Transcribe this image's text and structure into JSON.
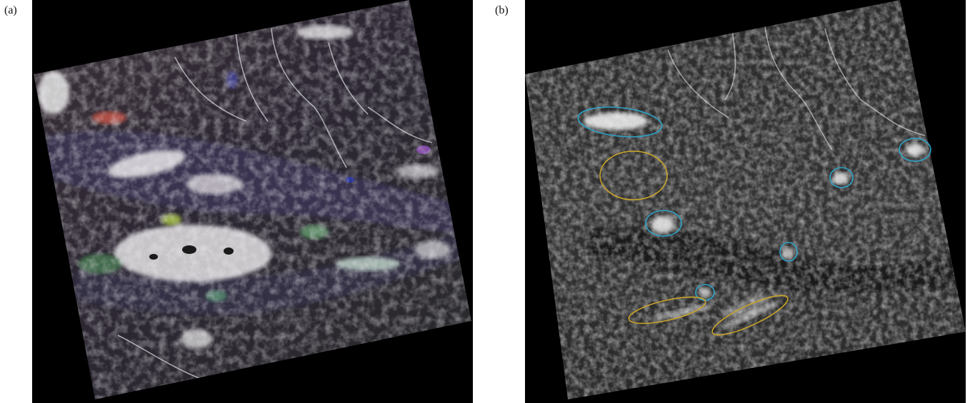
{
  "figure": {
    "panel_a": {
      "label": "(a)"
    },
    "panel_b": {
      "label": "(b)"
    }
  },
  "colors": {
    "background": "#000000",
    "highlight_blue": "#2ea3c9",
    "highlight_yellow": "#c9a42a"
  }
}
